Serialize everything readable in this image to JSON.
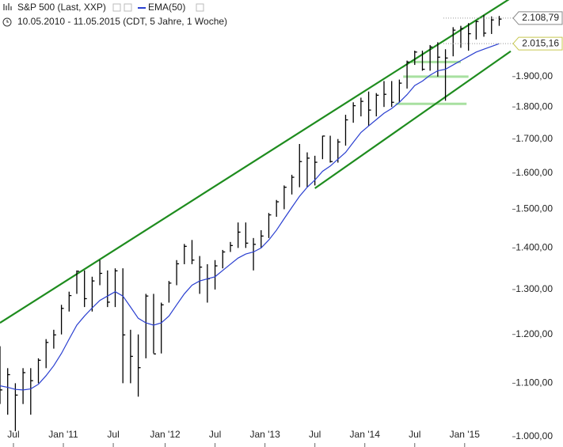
{
  "chart_data": {
    "type": "hlc",
    "title": "S&P 500 (Last, XXP)",
    "subtitle": "10.05.2010 - 11.05.2015 (CDT, 5 Jahre, 1 Woche)",
    "log_scale": true,
    "grid": false,
    "x": [
      0,
      4,
      8,
      12,
      16,
      20,
      24,
      28,
      32,
      36,
      40,
      44,
      48,
      52,
      56,
      60,
      64,
      68,
      72,
      76,
      80,
      84,
      88,
      92,
      96,
      100,
      104,
      108,
      112,
      116,
      120,
      124,
      128,
      132,
      136,
      140,
      144,
      148,
      152,
      156,
      160,
      164,
      168,
      172,
      176,
      180,
      184,
      188,
      192,
      196,
      200,
      204,
      208,
      212,
      216,
      220,
      224,
      228,
      232,
      236,
      240,
      244,
      248,
      252,
      256,
      260
    ],
    "xlim": [
      0,
      266
    ],
    "xticks": [
      {
        "value": 7,
        "label": "Jul"
      },
      {
        "value": 33,
        "label": "Jan '11"
      },
      {
        "value": 59,
        "label": "Jul"
      },
      {
        "value": 86,
        "label": "Jan '12"
      },
      {
        "value": 112,
        "label": "Jul"
      },
      {
        "value": 138,
        "label": "Jan '13"
      },
      {
        "value": 164,
        "label": "Jul"
      },
      {
        "value": 190,
        "label": "Jan '14"
      },
      {
        "value": 216,
        "label": "Jul"
      },
      {
        "value": 242,
        "label": "Jan '15"
      }
    ],
    "ylim": [
      1000,
      2178
    ],
    "yticks": [
      {
        "value": 1000,
        "label": "1.000,00"
      },
      {
        "value": 1100,
        "label": "1.100,00"
      },
      {
        "value": 1200,
        "label": "1.200,00"
      },
      {
        "value": 1300,
        "label": "1.300,00"
      },
      {
        "value": 1400,
        "label": "1.400,00"
      },
      {
        "value": 1500,
        "label": "1.500,00"
      },
      {
        "value": 1600,
        "label": "1.600,00"
      },
      {
        "value": 1700,
        "label": "1.700,00"
      },
      {
        "value": 1800,
        "label": "1.800,00"
      },
      {
        "value": 1900,
        "label": "1.900,00"
      }
    ],
    "series": [
      {
        "name": "S&P 500 (Last, XXP)",
        "color": "#000000",
        "high": [
          1175,
          1130,
          1100,
          1130,
          1130,
          1150,
          1190,
          1210,
          1265,
          1295,
          1345,
          1345,
          1330,
          1370,
          1345,
          1350,
          1350,
          1210,
          1200,
          1290,
          1290,
          1270,
          1320,
          1370,
          1410,
          1420,
          1380,
          1360,
          1370,
          1395,
          1415,
          1465,
          1465,
          1425,
          1445,
          1490,
          1525,
          1565,
          1595,
          1685,
          1660,
          1650,
          1710,
          1710,
          1700,
          1775,
          1815,
          1830,
          1850,
          1845,
          1885,
          1885,
          1890,
          1955,
          1990,
          1990,
          2010,
          2020,
          1995,
          2075,
          2080,
          2090,
          2100,
          2120,
          2115,
          2117
        ],
        "low": [
          1060,
          1040,
          1010,
          1060,
          1040,
          1100,
          1130,
          1170,
          1200,
          1250,
          1290,
          1260,
          1250,
          1310,
          1260,
          1260,
          1100,
          1100,
          1074,
          1150,
          1160,
          1160,
          1270,
          1310,
          1360,
          1360,
          1290,
          1270,
          1300,
          1350,
          1390,
          1400,
          1400,
          1345,
          1400,
          1425,
          1480,
          1500,
          1540,
          1560,
          1560,
          1565,
          1640,
          1630,
          1630,
          1680,
          1750,
          1770,
          1740,
          1770,
          1800,
          1800,
          1815,
          1860,
          1940,
          1920,
          1920,
          1900,
          1820,
          1970,
          2000,
          1990,
          2030,
          2040,
          2050,
          2080
        ],
        "values": [
          1087,
          1117,
          1077,
          1121,
          1105,
          1146,
          1183,
          1199,
          1257,
          1286,
          1343,
          1279,
          1320,
          1338,
          1271,
          1344,
          1199,
          1154,
          1131,
          1285,
          1159,
          1265,
          1315,
          1361,
          1404,
          1370,
          1353,
          1325,
          1356,
          1390,
          1406,
          1440,
          1412,
          1409,
          1430,
          1485,
          1520,
          1560,
          1588,
          1633,
          1643,
          1631,
          1709,
          1633,
          1691,
          1759,
          1804,
          1818,
          1790,
          1838,
          1841,
          1815,
          1878,
          1950,
          1985,
          1925,
          2003,
          1967,
          1964,
          2064,
          2070,
          2051,
          2096,
          2053,
          2102,
          2105
        ]
      },
      {
        "name": "EMA(50)",
        "color": "#2a3fd0",
        "values": [
          1095,
          1092,
          1088,
          1087,
          1089,
          1098,
          1115,
          1135,
          1160,
          1190,
          1220,
          1240,
          1258,
          1275,
          1285,
          1295,
          1285,
          1260,
          1235,
          1225,
          1220,
          1225,
          1240,
          1265,
          1290,
          1310,
          1320,
          1325,
          1330,
          1345,
          1360,
          1375,
          1385,
          1390,
          1400,
          1420,
          1445,
          1475,
          1505,
          1535,
          1560,
          1580,
          1605,
          1620,
          1640,
          1660,
          1690,
          1720,
          1740,
          1760,
          1780,
          1795,
          1815,
          1840,
          1870,
          1885,
          1905,
          1920,
          1925,
          1940,
          1955,
          1970,
          1985,
          1995,
          2005,
          2015
        ]
      }
    ],
    "price_labels": [
      {
        "value": 2108.79,
        "label": "2.108,79"
      },
      {
        "value": 2015.16,
        "label": "2.015,16"
      }
    ],
    "trendlines": [
      {
        "color": "#1e8c1e",
        "x": [
          0,
          266
        ],
        "y": [
          1225,
          2185
        ]
      },
      {
        "color": "#1e8c1e",
        "x": [
          164,
          266
        ],
        "y": [
          1557,
          1988
        ]
      }
    ],
    "levels": [
      {
        "color": "#a8e0a0",
        "x": [
          214,
          240
        ],
        "y": 1950
      },
      {
        "color": "#a8e0a0",
        "x": [
          210,
          244
        ],
        "y": 1900
      },
      {
        "color": "#a8e0a0",
        "x": [
          206,
          243
        ],
        "y": 1810
      }
    ]
  }
}
